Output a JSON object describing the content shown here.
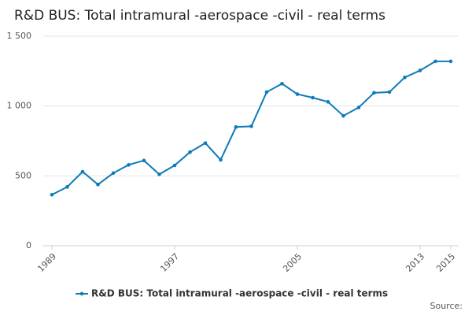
{
  "chart_data": {
    "type": "line",
    "title": "R&D BUS: Total intramural -aerospace -civil - real terms",
    "x": [
      1989,
      1990,
      1991,
      1992,
      1993,
      1994,
      1995,
      1996,
      1997,
      1998,
      1999,
      2000,
      2001,
      2002,
      2003,
      2004,
      2005,
      2006,
      2007,
      2008,
      2009,
      2010,
      2011,
      2012,
      2013,
      2014,
      2015
    ],
    "series": [
      {
        "name": "R&D BUS: Total intramural -aerospace -civil - real terms",
        "color": "#0f7ab8",
        "values": [
          365,
          421,
          530,
          438,
          520,
          579,
          610,
          511,
          575,
          670,
          735,
          615,
          850,
          855,
          1100,
          1160,
          1085,
          1060,
          1030,
          930,
          990,
          1095,
          1100,
          1205,
          1255,
          1320,
          1320
        ]
      }
    ],
    "xlim": [
      1989,
      2015
    ],
    "xticks": [
      1989,
      1997,
      2005,
      2013,
      2015
    ],
    "ylim": [
      0,
      1500
    ],
    "yticks": [
      0,
      500,
      {
        "value": 1000,
        "label": "1 000"
      },
      {
        "value": 1500,
        "label": "1 500"
      }
    ],
    "grid": true,
    "legend": "bottom",
    "source": "Source:"
  }
}
